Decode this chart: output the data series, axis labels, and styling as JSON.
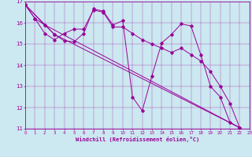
{
  "xlabel": "Windchill (Refroidissement éolien,°C)",
  "bg_color": "#cce8f0",
  "line_color": "#990099",
  "xlim": [
    0,
    23
  ],
  "ylim": [
    11,
    17
  ],
  "xticks": [
    0,
    1,
    2,
    3,
    4,
    5,
    6,
    7,
    8,
    9,
    10,
    11,
    12,
    13,
    14,
    15,
    16,
    17,
    18,
    19,
    20,
    21,
    22,
    23
  ],
  "yticks": [
    11,
    12,
    13,
    14,
    15,
    16,
    17
  ],
  "series1": [
    [
      0,
      16.85
    ],
    [
      1,
      16.2
    ],
    [
      2,
      15.9
    ],
    [
      3,
      15.45
    ],
    [
      4,
      15.15
    ],
    [
      5,
      15.1
    ],
    [
      6,
      15.5
    ],
    [
      7,
      16.65
    ],
    [
      8,
      16.55
    ],
    [
      9,
      15.9
    ],
    [
      10,
      16.1
    ],
    [
      11,
      12.5
    ],
    [
      12,
      11.85
    ],
    [
      13,
      13.5
    ],
    [
      14,
      15.05
    ],
    [
      15,
      15.45
    ],
    [
      16,
      15.95
    ],
    [
      17,
      15.85
    ],
    [
      18,
      14.5
    ],
    [
      19,
      13.0
    ],
    [
      20,
      12.5
    ],
    [
      21,
      11.3
    ],
    [
      22,
      11.05
    ]
  ],
  "series2": [
    [
      0,
      16.85
    ],
    [
      1,
      16.2
    ],
    [
      2,
      15.5
    ],
    [
      3,
      15.2
    ],
    [
      4,
      15.5
    ],
    [
      5,
      15.7
    ],
    [
      6,
      15.7
    ],
    [
      7,
      16.6
    ],
    [
      8,
      16.5
    ],
    [
      9,
      15.8
    ],
    [
      10,
      15.8
    ],
    [
      11,
      15.5
    ],
    [
      12,
      15.2
    ],
    [
      13,
      15.0
    ],
    [
      14,
      14.8
    ],
    [
      15,
      14.6
    ],
    [
      16,
      14.8
    ],
    [
      17,
      14.5
    ],
    [
      18,
      14.2
    ],
    [
      19,
      13.7
    ],
    [
      20,
      13.0
    ],
    [
      21,
      12.2
    ],
    [
      22,
      11.05
    ]
  ],
  "series3": [
    [
      0,
      16.85
    ],
    [
      3,
      15.45
    ],
    [
      22,
      11.05
    ]
  ],
  "series4": [
    [
      0,
      16.85
    ],
    [
      2,
      15.9
    ],
    [
      22,
      11.05
    ]
  ]
}
